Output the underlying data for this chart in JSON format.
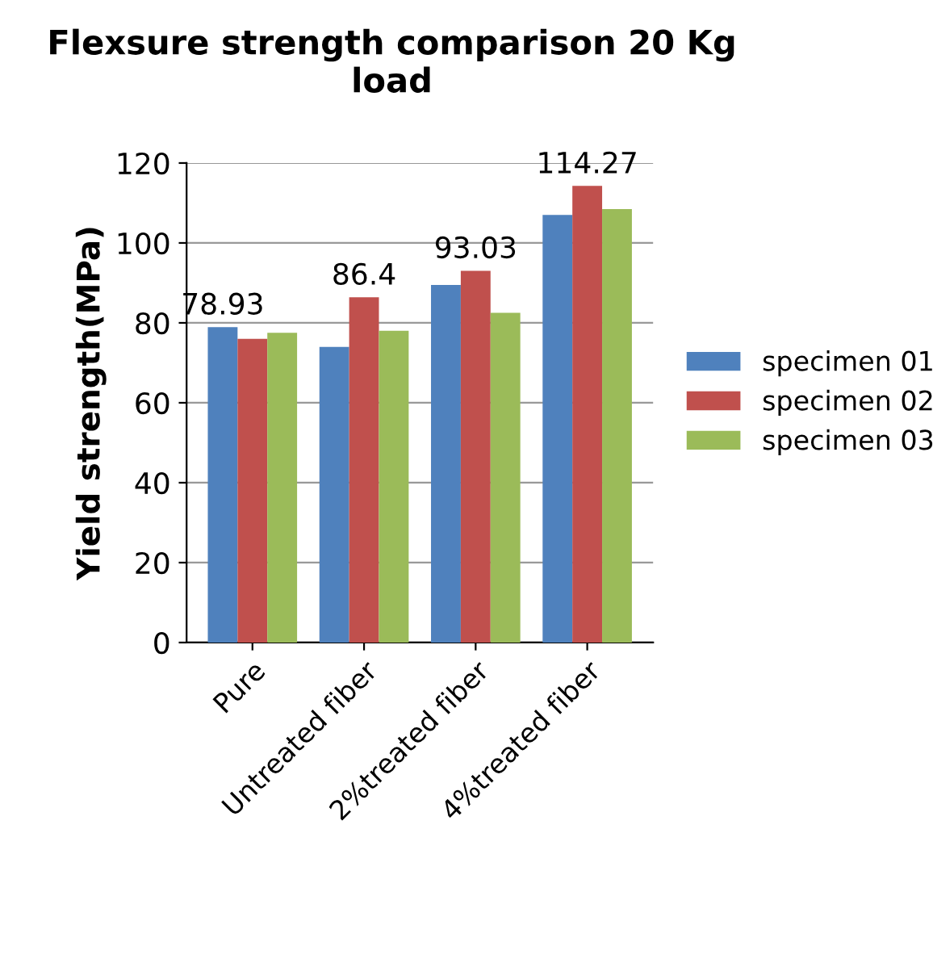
{
  "chart_data": {
    "type": "bar",
    "title": "Flexsure strength comparison 20 Kg load",
    "ylabel": "Yield strength(MPa)",
    "categories": [
      "Pure",
      "Untreated fiber",
      "2%treated fiber",
      "4%treated fiber"
    ],
    "series": [
      {
        "name": "specimen 01",
        "color": "#4f81bd",
        "values": [
          78.93,
          74,
          89.5,
          107
        ],
        "value_labels": [
          "78.93",
          null,
          null,
          null
        ]
      },
      {
        "name": "specimen 02",
        "color": "#c0504d",
        "values": [
          76,
          86.4,
          93.03,
          114.27
        ],
        "value_labels": [
          null,
          "86.4",
          "93.03",
          "114.27"
        ]
      },
      {
        "name": "specimen 03",
        "color": "#9bbb59",
        "values": [
          77.5,
          78,
          82.5,
          108.5
        ],
        "value_labels": [
          null,
          null,
          null,
          null
        ]
      }
    ],
    "ylim": [
      0,
      120
    ],
    "yticks": [
      0,
      20,
      40,
      60,
      80,
      100,
      120
    ],
    "grid": "y",
    "legend": "right"
  }
}
